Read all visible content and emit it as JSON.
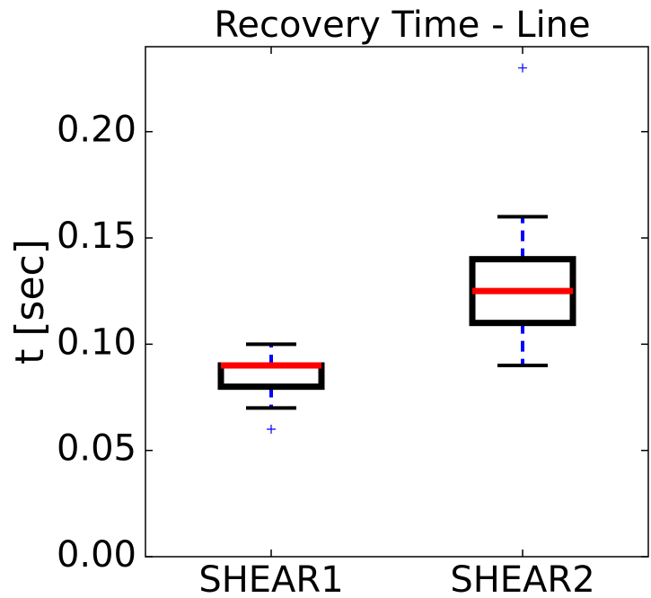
{
  "chart_data": {
    "type": "box",
    "title": "Recovery Time - Line",
    "y_label": "t [sec]",
    "categories": [
      "SHEAR1",
      "SHEAR2"
    ],
    "boxes": [
      {
        "whislo": 0.07,
        "q1": 0.08,
        "median": 0.09,
        "q3": 0.09,
        "whishi": 0.1,
        "fliers": [
          0.06
        ]
      },
      {
        "whislo": 0.09,
        "q1": 0.11,
        "median": 0.125,
        "q3": 0.14,
        "whishi": 0.16,
        "fliers": [
          0.23
        ]
      }
    ],
    "ylim": [
      0,
      0.24
    ],
    "yticks": [
      {
        "value": 0,
        "label": "0.00"
      },
      {
        "value": 0.05,
        "label": "0.05"
      },
      {
        "value": 0.1,
        "label": "0.10"
      },
      {
        "value": 0.15,
        "label": "0.15"
      },
      {
        "value": 0.2,
        "label": "0.20"
      }
    ],
    "box_color": "#000000",
    "median_color": "#ff0000",
    "whisker_color": "#0000ff",
    "flier_color": "#0000ff",
    "grid": false
  }
}
